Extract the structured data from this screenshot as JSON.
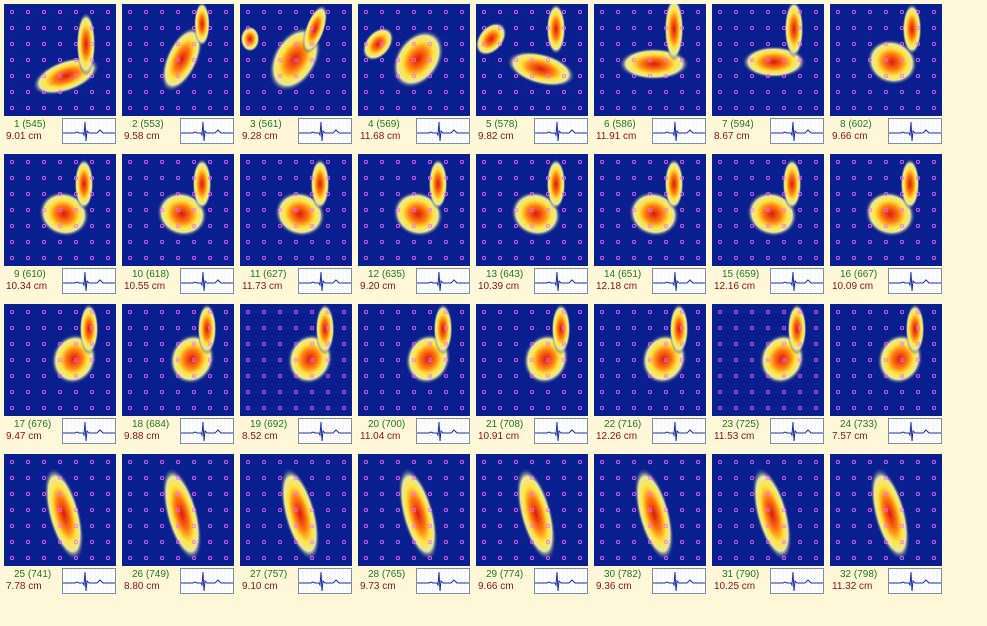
{
  "frames": [
    {
      "idx": "1 (545)",
      "dist": "9.01 cm"
    },
    {
      "idx": "2 (553)",
      "dist": "9.58 cm"
    },
    {
      "idx": "3 (561)",
      "dist": "9.28 cm"
    },
    {
      "idx": "4 (569)",
      "dist": "11.68 cm"
    },
    {
      "idx": "5 (578)",
      "dist": "9.82 cm"
    },
    {
      "idx": "6 (586)",
      "dist": "11.91 cm"
    },
    {
      "idx": "7 (594)",
      "dist": "8.67 cm"
    },
    {
      "idx": "8 (602)",
      "dist": "9.66 cm"
    },
    {
      "idx": "9 (610)",
      "dist": "10.34 cm"
    },
    {
      "idx": "10 (618)",
      "dist": "10.55 cm"
    },
    {
      "idx": "11 (627)",
      "dist": "11.73 cm"
    },
    {
      "idx": "12 (635)",
      "dist": "9.20 cm"
    },
    {
      "idx": "13 (643)",
      "dist": "10.39 cm"
    },
    {
      "idx": "14 (651)",
      "dist": "12.18 cm"
    },
    {
      "idx": "15 (659)",
      "dist": "12.16 cm"
    },
    {
      "idx": "16 (667)",
      "dist": "10.09 cm"
    },
    {
      "idx": "17 (676)",
      "dist": "9.47 cm"
    },
    {
      "idx": "18 (684)",
      "dist": "9.88 cm"
    },
    {
      "idx": "19 (692)",
      "dist": "8.52 cm"
    },
    {
      "idx": "20 (700)",
      "dist": "11.04 cm"
    },
    {
      "idx": "21 (708)",
      "dist": "10.91 cm"
    },
    {
      "idx": "22 (716)",
      "dist": "12.26 cm"
    },
    {
      "idx": "23 (725)",
      "dist": "11.53 cm"
    },
    {
      "idx": "24 (733)",
      "dist": "7.57 cm"
    },
    {
      "idx": "25 (741)",
      "dist": "7.78 cm"
    },
    {
      "idx": "26 (749)",
      "dist": "8.80 cm"
    },
    {
      "idx": "27 (757)",
      "dist": "9.10 cm"
    },
    {
      "idx": "28 (765)",
      "dist": "9.73 cm"
    },
    {
      "idx": "29 (774)",
      "dist": "9.66 cm"
    },
    {
      "idx": "30 (782)",
      "dist": "9.36 cm"
    },
    {
      "idx": "31 (790)",
      "dist": "10.25 cm"
    },
    {
      "idx": "32 (798)",
      "dist": "11.32 cm"
    }
  ],
  "colors": {
    "background": "#fff8d8",
    "map_bg": "#0a1f8f",
    "index_text": "#1a7a1a",
    "distance_text": "#8b1010",
    "sensor_dot": "#ff66ff",
    "ecg_trace": "#1a2fa0"
  }
}
